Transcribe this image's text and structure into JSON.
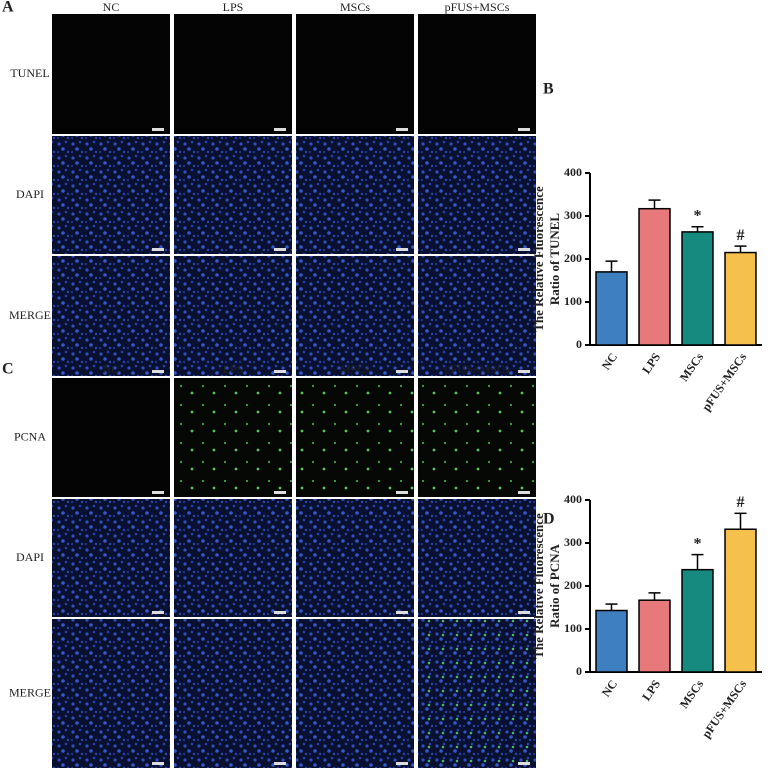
{
  "panels": [
    {
      "label": "A",
      "columns": [
        "NC",
        "LPS",
        "MSCs",
        "pFUS+MSCs"
      ],
      "rows": [
        "TUNEL",
        "DAPI",
        "MERGE"
      ]
    },
    {
      "label": "C",
      "columns": [
        "NC",
        "LPS",
        "MSCs",
        "pFUS+MSCs"
      ],
      "rows": [
        "PCNA",
        "DAPI",
        "MERGE"
      ]
    }
  ],
  "chart_data": [
    {
      "type": "bar",
      "panel": "B",
      "ylabel": [
        "The Relative Fluorescence",
        "Ratio of TUNEL"
      ],
      "categories": [
        "NC",
        "LPS",
        "MSCs",
        "pFUS+MSCs"
      ],
      "values": [
        170,
        317,
        263,
        215
      ],
      "errors": [
        25,
        20,
        12,
        15
      ],
      "annotations": [
        null,
        null,
        "*",
        "#"
      ],
      "colors": [
        "#3d7fbf",
        "#e8797a",
        "#178a80",
        "#f5c14c"
      ],
      "ylim": [
        0,
        400
      ],
      "yticks": [
        0,
        100,
        200,
        300,
        400
      ]
    },
    {
      "type": "bar",
      "panel": "D",
      "ylabel": [
        "The Relative Fluorescence",
        "Ratio of PCNA"
      ],
      "categories": [
        "NC",
        "LPS",
        "MSCs",
        "pFUS+MSCs"
      ],
      "values": [
        143,
        167,
        238,
        332
      ],
      "errors": [
        15,
        17,
        35,
        37
      ],
      "annotations": [
        null,
        null,
        "*",
        "#"
      ],
      "colors": [
        "#3d7fbf",
        "#e8797a",
        "#178a80",
        "#f5c14c"
      ],
      "ylim": [
        0,
        400
      ],
      "yticks": [
        0,
        100,
        200,
        300,
        400
      ]
    }
  ]
}
